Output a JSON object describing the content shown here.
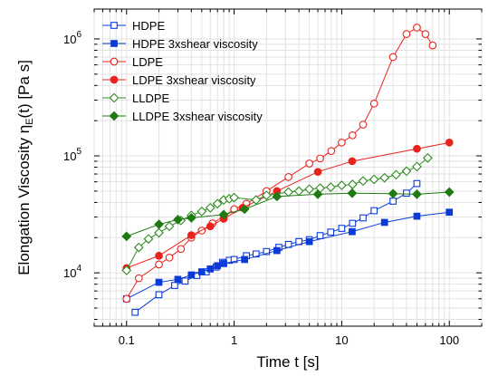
{
  "chart_data": {
    "type": "scatter",
    "title": "",
    "xlabel": "Time t [s]",
    "ylabel_main": "Elongation Viscosity η",
    "ylabel_sub": "E",
    "ylabel_tail": "(t) [Pa s]",
    "xscale": "log",
    "yscale": "log",
    "xlim": [
      0.05,
      200
    ],
    "ylim": [
      3500,
      1800000
    ],
    "x_ticks": [
      0.1,
      1,
      10,
      100
    ],
    "x_tick_labels": [
      "0.1",
      "1",
      "10",
      "100"
    ],
    "y_ticks": [
      10000,
      100000,
      1000000
    ],
    "y_tick_labels": [
      {
        "base": "10",
        "exp": "4"
      },
      {
        "base": "10",
        "exp": "5"
      },
      {
        "base": "10",
        "exp": "6"
      }
    ],
    "grid": true,
    "legend_position": "top-left",
    "series": [
      {
        "name": "HDPE",
        "color": "#0a3bd9",
        "marker": "square",
        "filled": false,
        "x": [
          0.12,
          0.2,
          0.28,
          0.35,
          0.45,
          0.55,
          0.68,
          0.78,
          0.9,
          1.0,
          1.3,
          1.6,
          2.0,
          2.6,
          3.2,
          4.0,
          5.0,
          6.3,
          7.9,
          10,
          12.6,
          15.8,
          20,
          30,
          40,
          50
        ],
        "y": [
          4600,
          6500,
          7800,
          8500,
          9500,
          10200,
          11200,
          12300,
          12800,
          13000,
          14000,
          14500,
          15200,
          16500,
          17500,
          18500,
          19200,
          20800,
          22300,
          24000,
          26500,
          29500,
          34000,
          41000,
          48000,
          58000
        ]
      },
      {
        "name": "HDPE 3xshear viscosity",
        "color": "#0a3bd9",
        "marker": "square",
        "filled": true,
        "x": [
          0.1,
          0.2,
          0.3,
          0.4,
          0.5,
          0.6,
          0.7,
          0.8,
          1.25,
          2.5,
          5.0,
          12.5,
          25,
          50,
          100
        ],
        "y": [
          6000,
          8300,
          8800,
          9600,
          10200,
          10800,
          11500,
          12000,
          13000,
          15500,
          18500,
          22500,
          27000,
          30500,
          33000
        ]
      },
      {
        "name": "LDPE",
        "color": "#e8221c",
        "marker": "circle",
        "filled": false,
        "x": [
          0.1,
          0.13,
          0.2,
          0.25,
          0.32,
          0.4,
          0.5,
          0.63,
          0.8,
          1.0,
          1.3,
          2.0,
          3.2,
          5.0,
          6.3,
          8.0,
          10,
          12.6,
          15.8,
          20,
          30,
          40,
          50,
          60,
          70
        ],
        "y": [
          6000,
          9000,
          11800,
          13500,
          16000,
          20000,
          23000,
          26500,
          30500,
          35000,
          39000,
          50000,
          66000,
          86000,
          95000,
          110000,
          130000,
          150000,
          185000,
          280000,
          700000,
          1100000,
          1250000,
          1100000,
          880000
        ]
      },
      {
        "name": "LDPE 3xshear viscosity",
        "color": "#e8221c",
        "marker": "circle",
        "filled": true,
        "x": [
          0.1,
          0.2,
          0.4,
          0.6,
          0.8,
          1.2,
          2.5,
          6.0,
          12.5,
          50,
          100
        ],
        "y": [
          11000,
          14000,
          21000,
          25000,
          29000,
          36000,
          50000,
          73000,
          90000,
          115000,
          130000
        ]
      },
      {
        "name": "LLDPE",
        "color": "#2e8b1f",
        "marker": "diamond",
        "filled": false,
        "x": [
          0.1,
          0.13,
          0.16,
          0.2,
          0.25,
          0.32,
          0.4,
          0.5,
          0.6,
          0.7,
          0.8,
          0.9,
          1.0,
          1.6,
          2.0,
          3.2,
          4.0,
          5.0,
          6.3,
          7.9,
          10,
          12.6,
          15.8,
          20,
          25,
          32,
          40,
          50,
          63
        ],
        "y": [
          10500,
          16500,
          19500,
          22000,
          25000,
          28000,
          31000,
          33500,
          36000,
          39000,
          42000,
          43000,
          44000,
          42000,
          46000,
          49000,
          50000,
          52000,
          53000,
          54000,
          56000,
          57000,
          61000,
          63000,
          65000,
          69000,
          74000,
          81000,
          96000
        ]
      },
      {
        "name": "LLDPE 3xshear viscosity",
        "color": "#1f7a12",
        "marker": "diamond",
        "filled": true,
        "x": [
          0.1,
          0.2,
          0.3,
          0.4,
          0.8,
          1.25,
          2.5,
          6.0,
          12.5,
          30,
          50,
          100
        ],
        "y": [
          20500,
          26000,
          28500,
          29500,
          31500,
          35000,
          45000,
          47000,
          48000,
          47500,
          47000,
          49000
        ]
      }
    ]
  }
}
